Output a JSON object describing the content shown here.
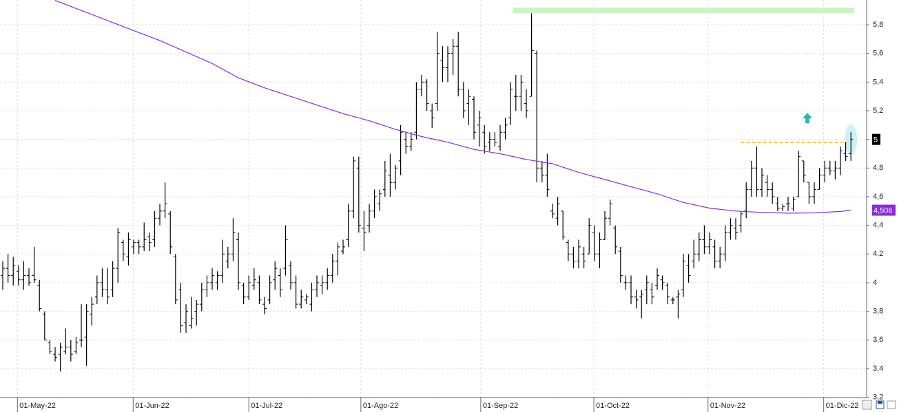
{
  "chart_data": {
    "type": "ohlc",
    "color": "#000000",
    "ohlc": [
      [
        4.05,
        4.15,
        3.95,
        4.1
      ],
      [
        4.1,
        4.2,
        4.0,
        4.05
      ],
      [
        4.05,
        4.18,
        3.98,
        4.12
      ],
      [
        4.08,
        4.12,
        3.98,
        4.02
      ],
      [
        4.02,
        4.15,
        3.95,
        4.05
      ],
      [
        4.05,
        4.1,
        3.98,
        4.0
      ],
      [
        4.05,
        4.25,
        4.0,
        4.02
      ],
      [
        3.98,
        4.02,
        3.8,
        3.82
      ],
      [
        3.78,
        3.8,
        3.6,
        3.6
      ],
      [
        3.58,
        3.6,
        3.5,
        3.52
      ],
      [
        3.5,
        3.55,
        3.45,
        3.48
      ],
      [
        3.5,
        3.58,
        3.38,
        3.55
      ],
      [
        3.52,
        3.68,
        3.5,
        3.55
      ],
      [
        3.55,
        3.6,
        3.45,
        3.5
      ],
      [
        3.52,
        3.62,
        3.5,
        3.58
      ],
      [
        3.6,
        3.85,
        3.55,
        3.6
      ],
      [
        3.62,
        3.85,
        3.42,
        3.8
      ],
      [
        3.78,
        3.9,
        3.7,
        3.85
      ],
      [
        3.9,
        4.05,
        3.85,
        4.0
      ],
      [
        4.0,
        4.1,
        3.9,
        3.95
      ],
      [
        3.95,
        4.1,
        3.85,
        3.9
      ],
      [
        3.95,
        4.15,
        3.9,
        4.1
      ],
      [
        4.1,
        4.38,
        4.0,
        4.35
      ],
      [
        4.28,
        4.3,
        4.15,
        4.2
      ],
      [
        4.18,
        4.35,
        4.12,
        4.3
      ],
      [
        4.25,
        4.3,
        4.2,
        4.28
      ],
      [
        4.28,
        4.3,
        4.2,
        4.25
      ],
      [
        4.25,
        4.42,
        4.22,
        4.3
      ],
      [
        4.32,
        4.35,
        4.22,
        4.28
      ],
      [
        4.3,
        4.5,
        4.25,
        4.45
      ],
      [
        4.45,
        4.55,
        4.4,
        4.5
      ],
      [
        4.5,
        4.7,
        4.45,
        4.55
      ],
      [
        4.48,
        4.5,
        4.2,
        4.25
      ],
      [
        4.18,
        4.2,
        3.85,
        3.88
      ],
      [
        3.95,
        4.0,
        3.65,
        3.7
      ],
      [
        3.72,
        3.85,
        3.65,
        3.8
      ],
      [
        3.7,
        3.9,
        3.68,
        3.75
      ],
      [
        3.8,
        3.88,
        3.7,
        3.85
      ],
      [
        3.85,
        4.0,
        3.8,
        3.95
      ],
      [
        3.95,
        4.05,
        3.9,
        4.0
      ],
      [
        4.0,
        4.1,
        3.95,
        4.05
      ],
      [
        4.0,
        4.08,
        3.95,
        4.05
      ],
      [
        4.05,
        4.3,
        4.0,
        4.2
      ],
      [
        4.15,
        4.25,
        4.1,
        4.2
      ],
      [
        4.2,
        4.45,
        4.15,
        4.35
      ],
      [
        4.3,
        4.35,
        3.95,
        4.0
      ],
      [
        3.98,
        4.0,
        3.85,
        3.9
      ],
      [
        3.9,
        4.05,
        3.88,
        4.0
      ],
      [
        3.98,
        4.1,
        3.95,
        4.02
      ],
      [
        4.0,
        4.05,
        3.85,
        3.88
      ],
      [
        3.85,
        3.9,
        3.78,
        3.82
      ],
      [
        3.88,
        4.05,
        3.85,
        4.0
      ],
      [
        4.02,
        4.15,
        3.95,
        4.1
      ],
      [
        4.05,
        4.1,
        3.9,
        3.95
      ],
      [
        4.1,
        4.4,
        4.05,
        4.3
      ],
      [
        4.12,
        4.15,
        3.95,
        4.0
      ],
      [
        4.0,
        4.05,
        3.82,
        3.85
      ],
      [
        3.85,
        3.95,
        3.82,
        3.9
      ],
      [
        3.88,
        3.92,
        3.85,
        3.9
      ],
      [
        3.85,
        4.0,
        3.8,
        3.95
      ],
      [
        3.95,
        4.05,
        3.9,
        4.0
      ],
      [
        3.98,
        4.05,
        3.92,
        4.0
      ],
      [
        4.0,
        4.1,
        3.95,
        4.05
      ],
      [
        4.05,
        4.2,
        4.0,
        4.15
      ],
      [
        4.15,
        4.28,
        4.05,
        4.25
      ],
      [
        4.22,
        4.3,
        4.2,
        4.25
      ],
      [
        4.3,
        4.55,
        4.25,
        4.5
      ],
      [
        4.5,
        4.88,
        4.45,
        4.85
      ],
      [
        4.8,
        4.88,
        4.35,
        4.4
      ],
      [
        4.38,
        4.5,
        4.22,
        4.35
      ],
      [
        4.4,
        4.55,
        4.35,
        4.5
      ],
      [
        4.5,
        4.65,
        4.45,
        4.6
      ],
      [
        4.55,
        4.65,
        4.5,
        4.62
      ],
      [
        4.65,
        4.85,
        4.6,
        4.78
      ],
      [
        4.75,
        4.9,
        4.6,
        4.7
      ],
      [
        4.7,
        4.82,
        4.65,
        4.8
      ],
      [
        4.85,
        5.1,
        4.75,
        5.05
      ],
      [
        5.0,
        5.05,
        4.9,
        4.95
      ],
      [
        4.95,
        5.05,
        4.92,
        5.0
      ],
      [
        5.05,
        5.4,
        5.0,
        5.35
      ],
      [
        5.35,
        5.45,
        5.3,
        5.4
      ],
      [
        5.4,
        5.42,
        5.2,
        5.25
      ],
      [
        5.2,
        5.25,
        5.08,
        5.15
      ],
      [
        5.25,
        5.75,
        5.2,
        5.6
      ],
      [
        5.55,
        5.65,
        5.4,
        5.5
      ],
      [
        5.5,
        5.65,
        5.4,
        5.6
      ],
      [
        5.6,
        5.7,
        5.45,
        5.65
      ],
      [
        5.65,
        5.75,
        5.3,
        5.35
      ],
      [
        5.35,
        5.4,
        5.15,
        5.2
      ],
      [
        5.25,
        5.35,
        5.1,
        5.3
      ],
      [
        5.28,
        5.3,
        5.0,
        5.05
      ],
      [
        5.1,
        5.2,
        4.95,
        5.15
      ],
      [
        5.05,
        5.1,
        4.9,
        4.95
      ],
      [
        4.98,
        5.05,
        4.92,
        5.0
      ],
      [
        5.0,
        5.05,
        4.95,
        4.98
      ],
      [
        4.95,
        5.1,
        4.92,
        5.05
      ],
      [
        5.05,
        5.15,
        5.0,
        5.1
      ],
      [
        5.15,
        5.4,
        5.1,
        5.35
      ],
      [
        5.3,
        5.45,
        5.2,
        5.3
      ],
      [
        5.3,
        5.45,
        5.2,
        5.4
      ],
      [
        5.25,
        5.35,
        5.15,
        5.2
      ],
      [
        5.3,
        5.88,
        5.3,
        5.62
      ],
      [
        5.6,
        5.62,
        4.7,
        4.8
      ],
      [
        4.8,
        4.85,
        4.7,
        4.75
      ],
      [
        4.75,
        4.9,
        4.6,
        4.65
      ],
      [
        4.5,
        4.55,
        4.45,
        4.48
      ],
      [
        4.45,
        4.6,
        4.4,
        4.55
      ],
      [
        4.5,
        4.5,
        4.3,
        4.32
      ],
      [
        4.28,
        4.3,
        4.15,
        4.2
      ],
      [
        4.2,
        4.25,
        4.1,
        4.15
      ],
      [
        4.15,
        4.3,
        4.1,
        4.25
      ],
      [
        4.2,
        4.25,
        4.1,
        4.15
      ],
      [
        4.2,
        4.45,
        4.2,
        4.4
      ],
      [
        4.35,
        4.4,
        4.15,
        4.2
      ],
      [
        4.2,
        4.35,
        4.1,
        4.3
      ],
      [
        4.3,
        4.5,
        4.3,
        4.45
      ],
      [
        4.45,
        4.58,
        4.4,
        4.55
      ],
      [
        4.38,
        4.4,
        4.2,
        4.25
      ],
      [
        4.22,
        4.25,
        4.0,
        4.05
      ],
      [
        4.0,
        4.05,
        3.95,
        4.0
      ],
      [
        4.0,
        4.05,
        3.85,
        3.9
      ],
      [
        3.9,
        3.95,
        3.82,
        3.88
      ],
      [
        3.9,
        3.95,
        3.75,
        3.92
      ],
      [
        3.95,
        4.05,
        3.85,
        4.0
      ],
      [
        3.95,
        4.0,
        3.85,
        3.9
      ],
      [
        3.98,
        4.1,
        3.95,
        4.05
      ],
      [
        4.02,
        4.05,
        3.95,
        4.0
      ],
      [
        3.98,
        4.0,
        3.85,
        3.9
      ],
      [
        3.88,
        3.9,
        3.85,
        3.88
      ],
      [
        3.9,
        3.95,
        3.75,
        3.92
      ],
      [
        3.95,
        4.2,
        3.9,
        4.15
      ],
      [
        4.12,
        4.2,
        4.0,
        4.05
      ],
      [
        4.15,
        4.3,
        4.1,
        4.2
      ],
      [
        4.2,
        4.35,
        4.15,
        4.3
      ],
      [
        4.3,
        4.4,
        4.2,
        4.25
      ],
      [
        4.25,
        4.35,
        4.2,
        4.3
      ],
      [
        4.25,
        4.3,
        4.1,
        4.15
      ],
      [
        4.15,
        4.25,
        4.1,
        4.2
      ],
      [
        4.2,
        4.4,
        4.15,
        4.35
      ],
      [
        4.35,
        4.45,
        4.3,
        4.4
      ],
      [
        4.38,
        4.45,
        4.3,
        4.35
      ],
      [
        4.4,
        4.5,
        4.35,
        4.48
      ],
      [
        4.5,
        4.7,
        4.45,
        4.65
      ],
      [
        4.65,
        4.85,
        4.6,
        4.8
      ],
      [
        4.8,
        4.95,
        4.6,
        4.65
      ],
      [
        4.65,
        4.8,
        4.6,
        4.75
      ],
      [
        4.7,
        4.75,
        4.6,
        4.65
      ],
      [
        4.65,
        4.7,
        4.55,
        4.6
      ],
      [
        4.55,
        4.6,
        4.5,
        4.52
      ],
      [
        4.52,
        4.55,
        4.5,
        4.53
      ],
      [
        4.55,
        4.6,
        4.5,
        4.55
      ],
      [
        4.52,
        4.6,
        4.5,
        4.58
      ],
      [
        4.6,
        4.92,
        4.6,
        4.88
      ],
      [
        4.85,
        4.85,
        4.7,
        4.75
      ],
      [
        4.7,
        4.7,
        4.55,
        4.6
      ],
      [
        4.6,
        4.7,
        4.55,
        4.65
      ],
      [
        4.65,
        4.8,
        4.65,
        4.75
      ],
      [
        4.75,
        4.85,
        4.7,
        4.8
      ],
      [
        4.8,
        4.85,
        4.75,
        4.78
      ],
      [
        4.78,
        4.85,
        4.72,
        4.8
      ],
      [
        4.8,
        4.95,
        4.75,
        4.92
      ],
      [
        4.9,
        4.98,
        4.85,
        4.88
      ],
      [
        4.9,
        5.05,
        4.85,
        5.0
      ]
    ],
    "moving_average": {
      "color": "#8a2be2",
      "x": [
        10,
        15,
        20,
        25,
        30,
        35,
        40,
        45,
        50,
        55,
        60,
        65,
        70,
        75,
        80,
        85,
        90,
        95,
        100,
        105,
        110,
        115,
        120,
        125,
        130,
        135,
        140,
        145,
        150,
        155,
        160,
        162
      ],
      "values": [
        5.97,
        5.9,
        5.83,
        5.76,
        5.69,
        5.61,
        5.53,
        5.43,
        5.36,
        5.3,
        5.24,
        5.18,
        5.13,
        5.07,
        5.02,
        4.98,
        4.93,
        4.9,
        4.86,
        4.83,
        4.77,
        4.72,
        4.67,
        4.62,
        4.56,
        4.52,
        4.5,
        4.49,
        4.485,
        4.487,
        4.497,
        4.506
      ],
      "last": {
        "value": 4.506,
        "label": "4,506"
      }
    },
    "last_price": 5,
    "levels": [
      {
        "value": 5.9,
        "from": 97.4,
        "to": 162.6,
        "color": "#c8f5c0",
        "style": "band"
      },
      {
        "value": 4.98,
        "from": 141,
        "to": 162.6,
        "color": "#e6b800",
        "style": "dashed"
      }
    ],
    "xlim": [
      -0.53,
      165
    ],
    "xticks": [
      {
        "value": 2.8,
        "label": "01-May-22"
      },
      {
        "value": 24.9,
        "label": "01-Jun-22"
      },
      {
        "value": 47,
        "label": "01-Jul-22"
      },
      {
        "value": 68.4,
        "label": "01-Ago-22"
      },
      {
        "value": 91.3,
        "label": "01-Sep-22"
      },
      {
        "value": 112.9,
        "label": "01-Oct-22"
      },
      {
        "value": 134.7,
        "label": "01-Nov-22"
      },
      {
        "value": 156.8,
        "label": "01-Dic-22"
      }
    ],
    "ylim": [
      3.198,
      5.973
    ],
    "yticks": [
      {
        "value": 3.2,
        "label": "3,2"
      },
      {
        "value": 3.4,
        "label": "3,4"
      },
      {
        "value": 3.6,
        "label": "3,6"
      },
      {
        "value": 3.8,
        "label": "3,8"
      },
      4,
      {
        "value": 4.2,
        "label": "4,2"
      },
      {
        "value": 4.4,
        "label": "4,4"
      },
      {
        "value": 4.6,
        "label": "4,6"
      },
      {
        "value": 4.8,
        "label": "4,8"
      },
      5,
      {
        "value": 5.2,
        "label": "5,2"
      },
      {
        "value": 5.4,
        "label": "5,4"
      },
      {
        "value": 5.6,
        "label": "5,6"
      },
      {
        "value": 5.8,
        "label": "5,8"
      }
    ],
    "grid": true
  }
}
